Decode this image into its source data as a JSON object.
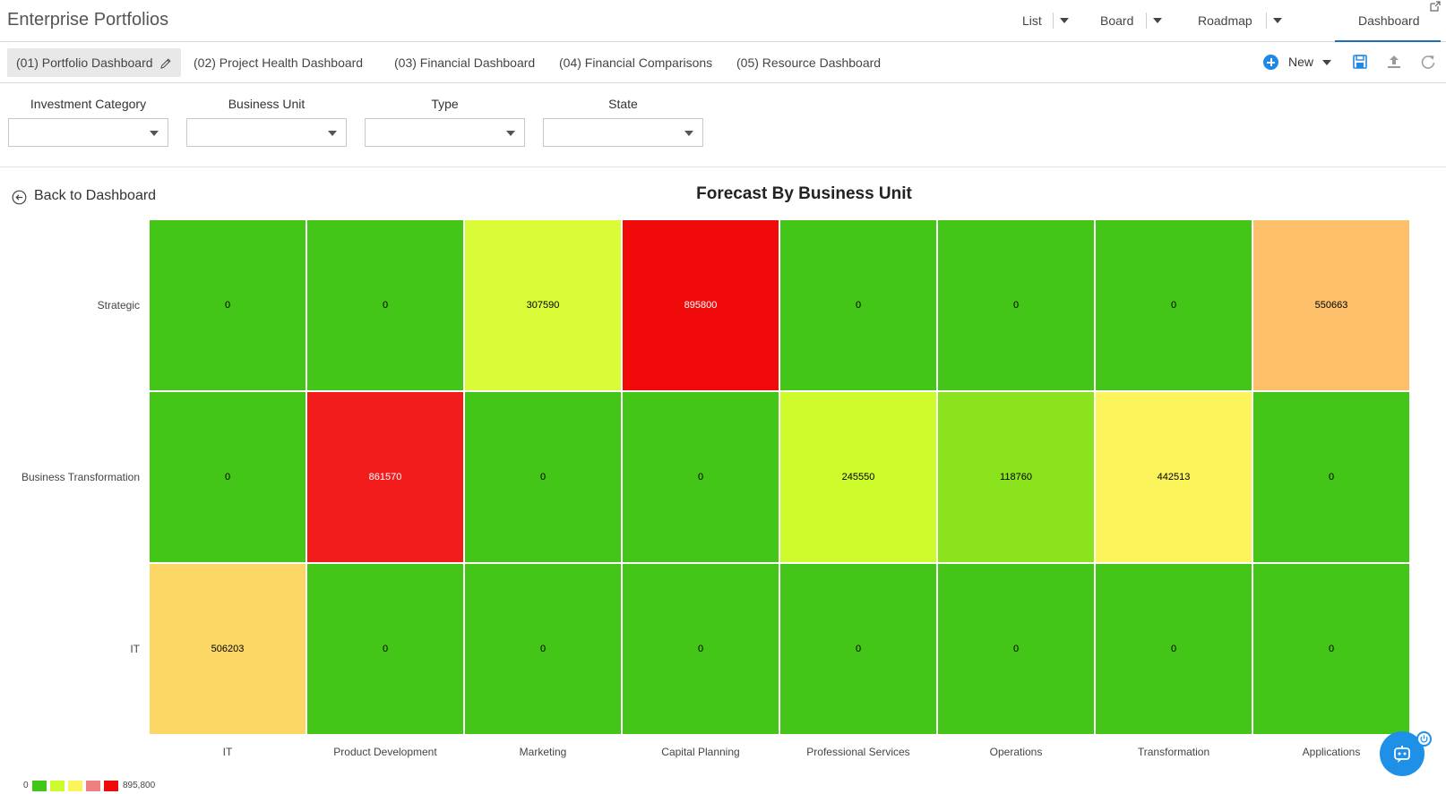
{
  "app": {
    "title": "Enterprise Portfolios"
  },
  "views": {
    "list": "List",
    "board": "Board",
    "roadmap": "Roadmap",
    "dashboard": "Dashboard"
  },
  "tabs": [
    {
      "label": "(01) Portfolio Dashboard",
      "active": true
    },
    {
      "label": "(02) Project Health Dashboard",
      "active": false
    },
    {
      "label": "(03) Financial Dashboard",
      "active": false
    },
    {
      "label": "(04) Financial Comparisons",
      "active": false
    },
    {
      "label": "(05) Resource Dashboard",
      "active": false
    }
  ],
  "toolbar": {
    "new_label": "New",
    "icons": [
      "save-icon",
      "upload-icon",
      "refresh-icon"
    ]
  },
  "filters": [
    {
      "label": "Investment Category",
      "value": ""
    },
    {
      "label": "Business Unit",
      "value": ""
    },
    {
      "label": "Type",
      "value": ""
    },
    {
      "label": "State",
      "value": ""
    }
  ],
  "back_link": {
    "label": "Back to Dashboard"
  },
  "colors": {
    "green": "#43c617",
    "lime": "#cdfb2b",
    "light_green": "#8be31d",
    "yellow_green": "#dafb38",
    "yellow": "#fbf45a",
    "orange_light": "#fcd766",
    "orange": "#fdbf69",
    "red": "#f10a0a",
    "red_alt": "#f31c1c",
    "accent": "#1e88e5"
  },
  "chart_data": {
    "type": "heatmap",
    "title": "Forecast By Business Unit",
    "x_categories": [
      "IT",
      "Product Development",
      "Marketing",
      "Capital Planning",
      "Professional Services",
      "Operations",
      "Transformation",
      "Applications"
    ],
    "y_categories": [
      "Strategic",
      "Business Transformation",
      "IT"
    ],
    "values": [
      [
        0,
        0,
        307590,
        895800,
        0,
        0,
        0,
        550663
      ],
      [
        0,
        861570,
        0,
        0,
        245550,
        118760,
        442513,
        0
      ],
      [
        506203,
        0,
        0,
        0,
        0,
        0,
        0,
        0
      ]
    ],
    "legend": {
      "min_label": "0",
      "max_label": "895,800",
      "colors": [
        "#43c617",
        "#cdfb2b",
        "#fbf45a",
        "#f08080",
        "#f10a0a"
      ]
    }
  }
}
